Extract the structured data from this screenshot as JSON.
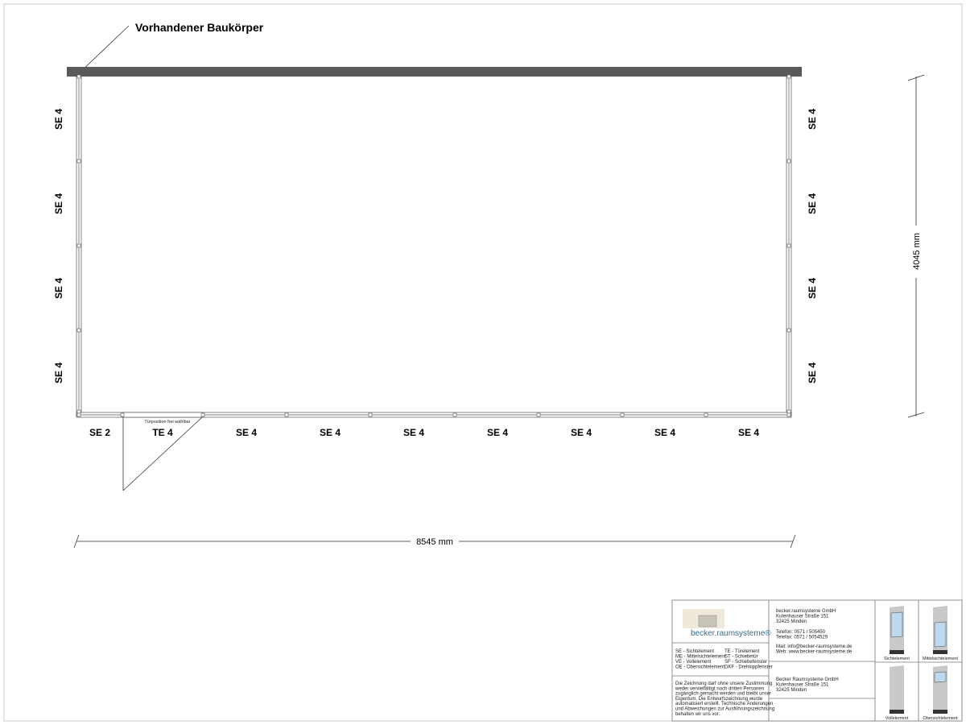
{
  "drawing": {
    "existing_building_label": "Vorhandener Baukörper",
    "left_wall_labels": [
      "SE 4",
      "SE 4",
      "SE 4",
      "SE 4"
    ],
    "right_wall_labels": [
      "SE 4",
      "SE 4",
      "SE 4",
      "SE 4"
    ],
    "bottom_wall_labels": [
      "SE 2",
      "TE 4",
      "SE 4",
      "SE 4",
      "SE 4",
      "SE 4",
      "SE 4",
      "SE 4",
      "SE 4"
    ],
    "door_note": "Türposition frei wählbar",
    "width_dimension": "8545 mm",
    "depth_dimension": "4045 mm"
  },
  "title_block": {
    "logo_text": "becker.raumsysteme®",
    "legend": [
      "SE - Sichtelement",
      "TE - Türelement",
      "ME - Mittelsichtelement",
      "ST - Schiebetür",
      "VE - Vollelement",
      "SF - Schiebefenster",
      "OE - Obersichtelement",
      "DKF - Drehkippfenster"
    ],
    "disclaimer": [
      "Die Zeichnung darf ohne unsere Zustimmung",
      "weder vervielfältigt noch dritten Personen",
      "zugänglich gemacht werden und bleibt unser",
      "Eigentum. Die Entwurfszeichnung wurde",
      "automatisiert erstellt. Technische Änderungen",
      "und Abweichungen zur Ausführungszeichnung",
      "behalten wir uns vor."
    ],
    "company": [
      "becker.raumsysteme GmbH",
      "Kutenhauser Straße 151",
      "32425 Minden"
    ],
    "contact": [
      "Telefon: 0571 / 505450",
      "Telefax: 0571 / 5054529"
    ],
    "web": [
      "Mail: info@becker-raumsysteme.de",
      "Web: www.becker-raumsysteme.de"
    ],
    "customer": [
      "Becker Raumsysteme GmbH",
      "Kutenhauser Straße 151",
      "32425 Minden"
    ],
    "elements": [
      "Sichtelement",
      "Mittelsichtelement",
      "Vollelement",
      "Obersichtelement"
    ]
  }
}
